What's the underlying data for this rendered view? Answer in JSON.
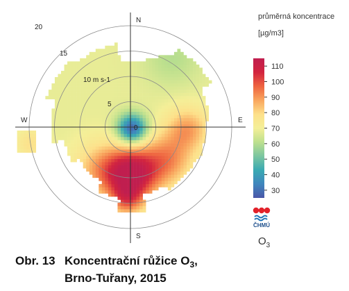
{
  "legend": {
    "title": "průměrná koncentrace",
    "unit": "[µg/m3]",
    "ticks": [
      30,
      40,
      50,
      60,
      70,
      80,
      90,
      100,
      110
    ],
    "min": 25,
    "max": 115,
    "colors": [
      "#4a57a8",
      "#3f86bd",
      "#3aaab2",
      "#7cc6a0",
      "#bde08e",
      "#f4ef98",
      "#fde08a",
      "#f9a65e",
      "#ee6440",
      "#d2243f",
      "#c01e4f"
    ]
  },
  "logo": {
    "text": "ČHMÚ",
    "alt": "ČHMÚ logo"
  },
  "pollutant": {
    "name": "O",
    "sub": "3"
  },
  "caption": {
    "number": "Obr. 13",
    "line1_main": "Koncentrační růžice O",
    "line1_sub": "3",
    "line1_end": ",",
    "line2": "Brno-Tuřany, 2015"
  },
  "chart_data": {
    "type": "heatmap",
    "subtype": "polar concentration rose (pollution rose)",
    "radial_axis": {
      "unit": "m s-1",
      "ring_labels": [
        "5",
        "10 m s-1",
        "15",
        "20"
      ],
      "rings": [
        5,
        10,
        15,
        20
      ]
    },
    "directions": {
      "north": "N",
      "east": "E",
      "south": "S",
      "west": "W"
    },
    "center_label": "0",
    "value_unit": "µg/m3",
    "value_range": [
      25,
      112
    ],
    "observed_regions": [
      {
        "direction": "center (calm)",
        "speed_range": [
          0,
          2
        ],
        "value": 27
      },
      {
        "direction": "around center",
        "speed_range": [
          2,
          4
        ],
        "value": 42
      },
      {
        "direction": "N-NW",
        "speed_range": [
          4,
          14
        ],
        "value": 67
      },
      {
        "direction": "W",
        "speed_range": [
          4,
          16
        ],
        "value": 64
      },
      {
        "direction": "NE",
        "speed_range": [
          10,
          18
        ],
        "value": 58
      },
      {
        "direction": "E",
        "speed_range": [
          5,
          15
        ],
        "value": 86
      },
      {
        "direction": "SE",
        "speed_range": [
          5,
          15
        ],
        "value": 84
      },
      {
        "direction": "S",
        "speed_range": [
          6,
          12
        ],
        "value": 108
      },
      {
        "direction": "SSW",
        "speed_range": [
          12,
          16
        ],
        "value": 106
      },
      {
        "direction": "SW",
        "speed_range": [
          6,
          12
        ],
        "value": 92
      },
      {
        "direction": "far W",
        "speed_range": [
          16,
          20
        ],
        "value": 78
      }
    ]
  }
}
